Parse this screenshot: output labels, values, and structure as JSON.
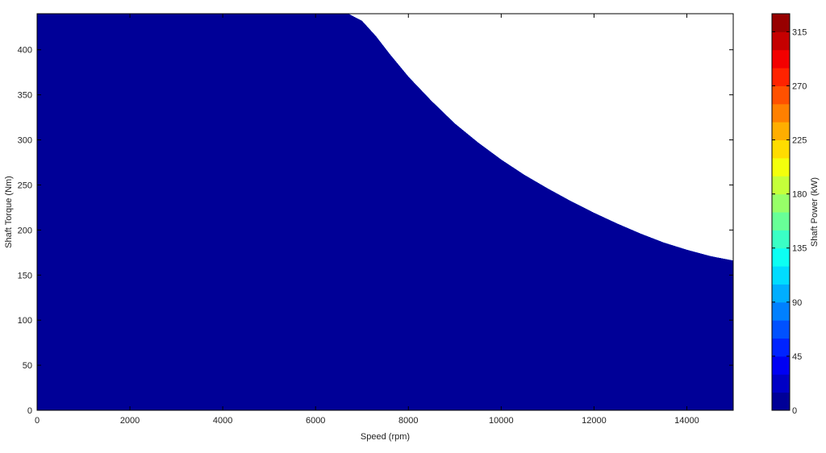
{
  "chart_data": {
    "type": "contourf",
    "title": "",
    "xlabel": "Speed  (rpm)",
    "ylabel": "Shaft Torque  (Nm)",
    "xlim": [
      0,
      15000
    ],
    "ylim": [
      0,
      440
    ],
    "xticks": [
      0,
      2000,
      4000,
      6000,
      8000,
      10000,
      12000,
      14000
    ],
    "yticks": [
      0,
      50,
      100,
      150,
      200,
      250,
      300,
      350,
      400
    ],
    "x_tick_labels": [
      "0",
      "2000",
      "4000",
      "6000",
      "8000",
      "10000",
      "12000",
      "14000"
    ],
    "y_tick_labels": [
      "0",
      "50",
      "100",
      "150",
      "200",
      "250",
      "300",
      "350",
      "400"
    ],
    "colormap": "jet",
    "level_step": 15,
    "levels": [
      0,
      15,
      30,
      45,
      60,
      75,
      90,
      105,
      120,
      135,
      150,
      165,
      180,
      195,
      210,
      225,
      240,
      255,
      270,
      285,
      300,
      315,
      330
    ],
    "colorbar": {
      "label": "Shaft Power  (kW)",
      "ticks": [
        0,
        45,
        90,
        135,
        180,
        225,
        270,
        315
      ],
      "tick_labels": [
        "0",
        "45",
        "90",
        "135",
        "180",
        "225",
        "270",
        "315"
      ],
      "range": [
        0,
        330
      ]
    },
    "envelope": {
      "description_values": "maximum torque boundary (speed rpm, torque Nm)",
      "points": [
        [
          0,
          440
        ],
        [
          6700,
          440
        ],
        [
          7000,
          432
        ],
        [
          7300,
          415
        ],
        [
          7600,
          395
        ],
        [
          8000,
          370
        ],
        [
          8500,
          343
        ],
        [
          9000,
          318
        ],
        [
          9500,
          297
        ],
        [
          10000,
          278
        ],
        [
          10500,
          261
        ],
        [
          11000,
          246
        ],
        [
          11500,
          232
        ],
        [
          12000,
          219
        ],
        [
          12500,
          207
        ],
        [
          13000,
          196
        ],
        [
          13500,
          186
        ],
        [
          14000,
          178
        ],
        [
          14500,
          171
        ],
        [
          15000,
          166
        ]
      ]
    },
    "grid": false,
    "legend": "colorbar-right"
  }
}
